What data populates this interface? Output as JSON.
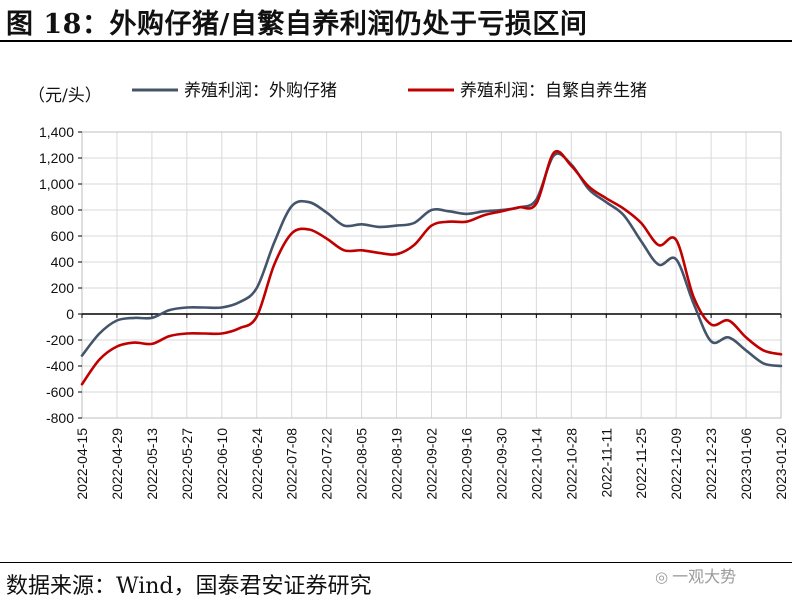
{
  "figure": {
    "title": "图 18：外购仔猪/自繁自养利润仍处于亏损区间",
    "source": "数据来源：Wind，国泰君安证券研究",
    "watermark": "一观大势"
  },
  "colors": {
    "series1": "#44546a",
    "series2": "#c00000",
    "grid": "#d9d9d9"
  },
  "chart_data": {
    "type": "line",
    "ylabel": "（元/头）",
    "ylim": [
      -800,
      1400
    ],
    "yticks": [
      -800,
      -600,
      -400,
      -200,
      0,
      200,
      400,
      600,
      800,
      1000,
      1200,
      1400
    ],
    "ytick_labels": [
      "-800",
      "-600",
      "-400",
      "-200",
      "0",
      "200",
      "400",
      "600",
      "800",
      "1,000",
      "1,200",
      "1,400"
    ],
    "x_tick_labels": [
      "2022-04-15",
      "2022-04-29",
      "2022-05-13",
      "2022-05-27",
      "2022-06-10",
      "2022-06-24",
      "2022-07-08",
      "2022-07-22",
      "2022-08-05",
      "2022-08-19",
      "2022-09-02",
      "2022-09-16",
      "2022-09-30",
      "2022-10-14",
      "2022-10-28",
      "2022-11-11",
      "2022-11-25",
      "2022-12-09",
      "2022-12-23",
      "2023-01-06",
      "2023-01-20"
    ],
    "x": [
      "2022-04-15",
      "2022-04-22",
      "2022-04-29",
      "2022-05-06",
      "2022-05-13",
      "2022-05-20",
      "2022-05-27",
      "2022-06-03",
      "2022-06-10",
      "2022-06-17",
      "2022-06-24",
      "2022-07-01",
      "2022-07-08",
      "2022-07-15",
      "2022-07-22",
      "2022-07-29",
      "2022-08-05",
      "2022-08-12",
      "2022-08-19",
      "2022-08-26",
      "2022-09-02",
      "2022-09-09",
      "2022-09-16",
      "2022-09-23",
      "2022-09-30",
      "2022-10-07",
      "2022-10-14",
      "2022-10-21",
      "2022-10-28",
      "2022-11-04",
      "2022-11-11",
      "2022-11-18",
      "2022-11-25",
      "2022-12-02",
      "2022-12-09",
      "2022-12-16",
      "2022-12-23",
      "2022-12-30",
      "2023-01-06",
      "2023-01-13",
      "2023-01-20"
    ],
    "series": [
      {
        "name": "养殖利润：外购仔猪",
        "values": [
          -320,
          -150,
          -50,
          -30,
          -30,
          30,
          50,
          50,
          50,
          90,
          200,
          550,
          830,
          860,
          780,
          680,
          690,
          670,
          680,
          700,
          800,
          790,
          770,
          790,
          800,
          820,
          880,
          1220,
          1150,
          960,
          860,
          760,
          560,
          380,
          420,
          80,
          -210,
          -180,
          -280,
          -380,
          -400
        ]
      },
      {
        "name": "养殖利润：自繁自养生猪",
        "values": [
          -540,
          -350,
          -250,
          -220,
          -230,
          -170,
          -150,
          -150,
          -150,
          -110,
          -20,
          380,
          620,
          650,
          580,
          490,
          490,
          470,
          460,
          530,
          680,
          710,
          710,
          760,
          790,
          820,
          850,
          1240,
          1140,
          980,
          890,
          810,
          700,
          530,
          570,
          130,
          -80,
          -50,
          -180,
          -280,
          -310
        ]
      }
    ],
    "grid": true,
    "legend": "top"
  }
}
